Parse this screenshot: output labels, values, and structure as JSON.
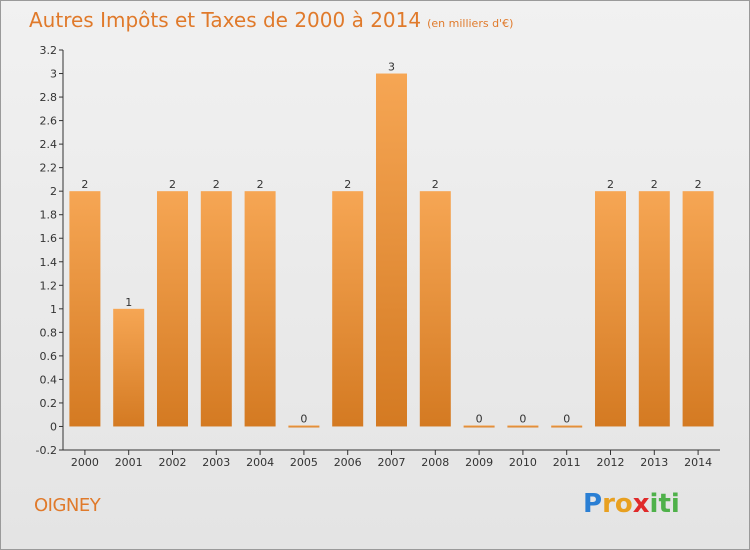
{
  "title": "Autres Impôts et Taxes de 2000 à 2014",
  "subtitle": "(en milliers d'€)",
  "commune": "OIGNEY",
  "logo": {
    "letters": [
      {
        "ch": "P",
        "color": "#2a7fd4"
      },
      {
        "ch": "r",
        "color": "#e8a020"
      },
      {
        "ch": "o",
        "color": "#e8a020"
      },
      {
        "ch": "x",
        "color": "#e02a2a"
      },
      {
        "ch": "i",
        "color": "#4fb14a"
      },
      {
        "ch": "t",
        "color": "#4fb14a"
      },
      {
        "ch": "i",
        "color": "#4fb14a"
      }
    ]
  },
  "colors": {
    "bar_light": "#f6a654",
    "bar_dark": "#d47a22",
    "axis": "#333333",
    "text": "#333333"
  },
  "chart_data": {
    "type": "bar",
    "categories": [
      "2000",
      "2001",
      "2002",
      "2003",
      "2004",
      "2005",
      "2006",
      "2007",
      "2008",
      "2009",
      "2010",
      "2011",
      "2012",
      "2013",
      "2014"
    ],
    "values": [
      2,
      1,
      2,
      2,
      2,
      0,
      2,
      3,
      2,
      0,
      0,
      0,
      2,
      2,
      2
    ],
    "data_labels": [
      "2",
      "1",
      "2",
      "2",
      "2",
      "0",
      "2",
      "3",
      "2",
      "0",
      "0",
      "0",
      "2",
      "2",
      "2"
    ],
    "ylim": [
      -0.2,
      3.2
    ],
    "yticks": [
      "-0.2",
      "0",
      "0.2",
      "0.4",
      "0.6",
      "0.8",
      "1",
      "1.2",
      "1.4",
      "1.6",
      "1.8",
      "2",
      "2.2",
      "2.4",
      "2.6",
      "2.8",
      "3",
      "3.2"
    ],
    "ytick_values": [
      -0.2,
      0,
      0.2,
      0.4,
      0.6,
      0.8,
      1,
      1.2,
      1.4,
      1.6,
      1.8,
      2,
      2.2,
      2.4,
      2.6,
      2.8,
      3,
      3.2
    ],
    "grid": false
  }
}
